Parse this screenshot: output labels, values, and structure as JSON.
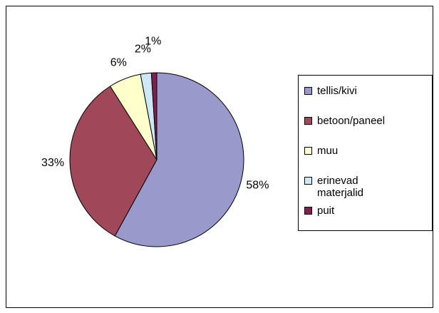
{
  "chart_data": {
    "type": "pie",
    "categories": [
      "tellis/kivi",
      "betoon/paneel",
      "muu",
      "erinevad materjalid",
      "puit"
    ],
    "values": [
      58,
      33,
      6,
      2,
      1
    ],
    "colors": [
      "#9999cc",
      "#a0485a",
      "#ffffcc",
      "#cce9f5",
      "#802050"
    ],
    "legend": "right"
  }
}
